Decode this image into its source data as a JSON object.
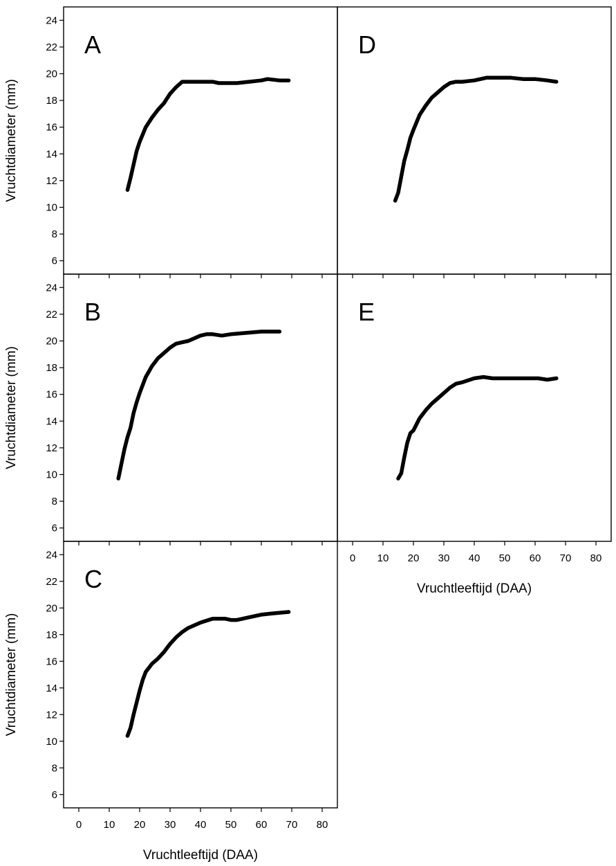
{
  "chart_data": [
    {
      "panel": "A",
      "type": "line",
      "ylabel": "Vruchtdiameter (mm)",
      "xlabel": "",
      "ylim": [
        5,
        25
      ],
      "xlim": [
        -5,
        85
      ],
      "yticks": [
        6,
        8,
        10,
        12,
        14,
        16,
        18,
        20,
        22,
        24
      ],
      "xticks": [],
      "series": [
        {
          "x": [
            16,
            17,
            18,
            19,
            20,
            22,
            24,
            26,
            28,
            30,
            32,
            34,
            36,
            40,
            44,
            46,
            50,
            52,
            56,
            60,
            62,
            66,
            69
          ],
          "y": [
            11.3,
            12.2,
            13.2,
            14.2,
            14.9,
            16.0,
            16.7,
            17.3,
            17.8,
            18.5,
            19.0,
            19.4,
            19.4,
            19.4,
            19.4,
            19.3,
            19.3,
            19.3,
            19.4,
            19.5,
            19.6,
            19.5,
            19.5
          ]
        }
      ]
    },
    {
      "panel": "B",
      "type": "line",
      "ylabel": "Vruchtdiameter (mm)",
      "xlabel": "",
      "ylim": [
        5,
        25
      ],
      "xlim": [
        -5,
        85
      ],
      "yticks": [
        6,
        8,
        10,
        12,
        14,
        16,
        18,
        20,
        22,
        24
      ],
      "xticks": [],
      "series": [
        {
          "x": [
            13,
            14,
            15,
            16,
            17,
            18,
            19,
            20,
            22,
            24,
            26,
            28,
            30,
            32,
            34,
            36,
            40,
            42,
            44,
            47,
            50,
            55,
            60,
            66
          ],
          "y": [
            9.7,
            10.8,
            11.9,
            12.8,
            13.5,
            14.6,
            15.4,
            16.1,
            17.3,
            18.1,
            18.7,
            19.1,
            19.5,
            19.8,
            19.9,
            20.0,
            20.4,
            20.5,
            20.5,
            20.4,
            20.5,
            20.6,
            20.7,
            20.7
          ]
        }
      ]
    },
    {
      "panel": "C",
      "type": "line",
      "ylabel": "Vruchtdiameter (mm)",
      "xlabel": "Vruchtleeftijd (DAA)",
      "ylim": [
        5,
        25
      ],
      "xlim": [
        -5,
        85
      ],
      "yticks": [
        6,
        8,
        10,
        12,
        14,
        16,
        18,
        20,
        22,
        24
      ],
      "xticks": [
        0,
        10,
        20,
        30,
        40,
        50,
        60,
        70,
        80
      ],
      "series": [
        {
          "x": [
            16,
            17,
            18,
            19,
            20,
            21,
            22,
            23,
            24,
            26,
            28,
            30,
            32,
            34,
            36,
            40,
            44,
            48,
            50,
            52,
            56,
            60,
            64,
            69
          ],
          "y": [
            10.4,
            11.0,
            12.0,
            12.9,
            13.8,
            14.6,
            15.2,
            15.5,
            15.8,
            16.2,
            16.7,
            17.3,
            17.8,
            18.2,
            18.5,
            18.9,
            19.2,
            19.2,
            19.1,
            19.1,
            19.3,
            19.5,
            19.6,
            19.7
          ]
        }
      ]
    },
    {
      "panel": "D",
      "type": "line",
      "ylabel": "",
      "xlabel": "",
      "ylim": [
        5,
        25
      ],
      "xlim": [
        -5,
        85
      ],
      "yticks": [],
      "xticks": [],
      "series": [
        {
          "x": [
            14,
            15,
            16,
            17,
            18,
            19,
            20,
            22,
            24,
            26,
            28,
            30,
            32,
            34,
            36,
            40,
            44,
            48,
            52,
            56,
            60,
            64,
            67
          ],
          "y": [
            10.5,
            11.1,
            12.3,
            13.5,
            14.3,
            15.2,
            15.8,
            16.9,
            17.6,
            18.2,
            18.6,
            19.0,
            19.3,
            19.4,
            19.4,
            19.5,
            19.7,
            19.7,
            19.7,
            19.6,
            19.6,
            19.5,
            19.4
          ]
        }
      ]
    },
    {
      "panel": "E",
      "type": "line",
      "ylabel": "",
      "xlabel": "Vruchtleeftijd (DAA)",
      "ylim": [
        5,
        25
      ],
      "xlim": [
        -5,
        85
      ],
      "yticks": [],
      "xticks": [
        0,
        10,
        20,
        30,
        40,
        50,
        60,
        70,
        80
      ],
      "series": [
        {
          "x": [
            15,
            16,
            17,
            18,
            19,
            20,
            22,
            24,
            26,
            28,
            30,
            32,
            34,
            36,
            40,
            43,
            46,
            50,
            54,
            58,
            61,
            64,
            67
          ],
          "y": [
            9.7,
            10.1,
            11.3,
            12.4,
            13.1,
            13.3,
            14.2,
            14.8,
            15.3,
            15.7,
            16.1,
            16.5,
            16.8,
            16.9,
            17.2,
            17.3,
            17.2,
            17.2,
            17.2,
            17.2,
            17.2,
            17.1,
            17.2
          ]
        }
      ]
    }
  ]
}
